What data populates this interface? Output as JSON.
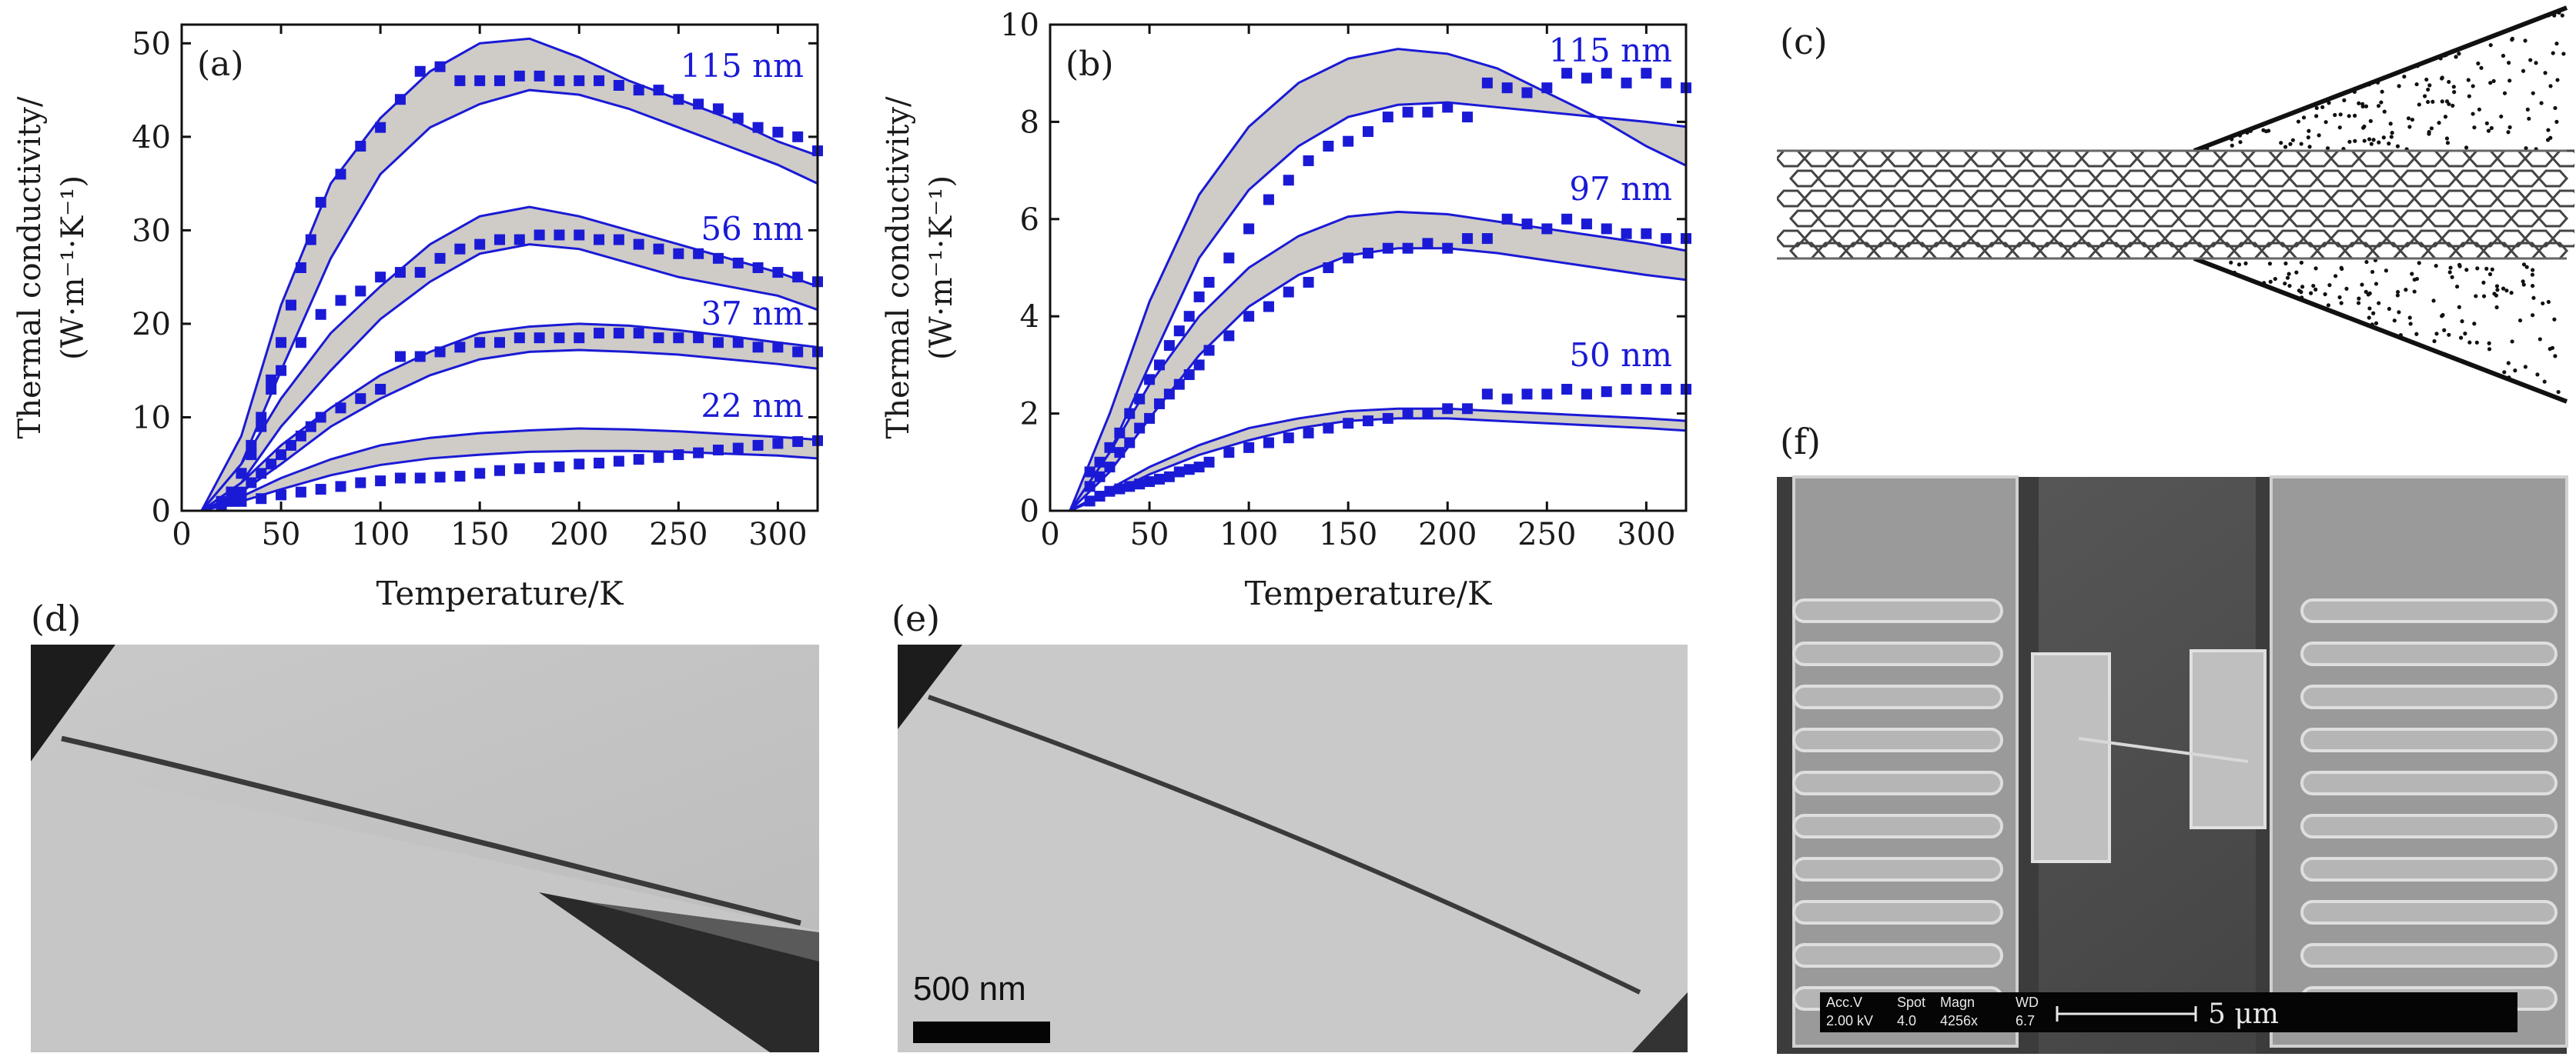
{
  "figure": {
    "panel_labels": {
      "a": "(a)",
      "b": "(b)",
      "c": "(c)",
      "d": "(d)",
      "e": "(e)",
      "f": "(f)"
    },
    "scale_bar_e": "500 nm",
    "sem_info": {
      "acc_v_label": "Acc.V",
      "acc_v_value": "2.00 kV",
      "spot_label": "Spot",
      "spot_value": "4.0",
      "magn_label": "Magn",
      "magn_value": "4256x",
      "wd_label": "WD",
      "wd_value": "6.7",
      "scale": "5 μm"
    }
  },
  "chart_data": [
    {
      "type": "line",
      "panel": "(a)",
      "xlabel": "Temperature/K",
      "ylabel_line1": "Thermal conductivity/",
      "ylabel_line2": "(W·m⁻¹·K⁻¹)",
      "xlim": [
        0,
        320
      ],
      "ylim": [
        0,
        52
      ],
      "xticks": [
        0,
        50,
        100,
        150,
        200,
        250,
        300
      ],
      "yticks": [
        0,
        10,
        20,
        30,
        40,
        50
      ],
      "series": [
        {
          "name": "115 nm",
          "band_x": [
            10,
            30,
            50,
            75,
            100,
            125,
            150,
            175,
            200,
            225,
            250,
            275,
            300,
            320
          ],
          "band_upper": [
            0,
            8,
            22,
            35,
            42,
            47,
            50,
            50.5,
            48.5,
            46,
            44,
            42,
            39.5,
            38
          ],
          "band_lower": [
            0,
            5,
            15,
            27,
            36,
            41,
            43.5,
            45,
            44.5,
            43,
            41,
            39,
            37,
            35
          ],
          "points_x": [
            20,
            25,
            30,
            35,
            40,
            45,
            50,
            55,
            60,
            65,
            70,
            80,
            90,
            100,
            110,
            120,
            130,
            140,
            150,
            160,
            170,
            180,
            190,
            200,
            210,
            220,
            230,
            240,
            250,
            260,
            270,
            280,
            290,
            300,
            310,
            320
          ],
          "points_y": [
            1,
            2,
            4,
            7,
            10,
            14,
            18,
            22,
            26,
            29,
            33,
            36,
            39,
            41,
            44,
            47,
            47.5,
            46,
            46,
            46,
            46.5,
            46.5,
            46,
            46,
            46,
            45.5,
            45,
            45,
            44,
            43.5,
            43,
            42,
            41,
            40.5,
            40,
            38.5
          ]
        },
        {
          "name": "56 nm",
          "band_x": [
            10,
            30,
            50,
            75,
            100,
            125,
            150,
            175,
            200,
            225,
            250,
            275,
            300,
            320
          ],
          "band_upper": [
            0,
            5,
            12,
            19,
            24,
            28.5,
            31.5,
            32.5,
            31.5,
            30,
            28.5,
            27,
            25.5,
            24
          ],
          "band_lower": [
            0,
            3,
            9,
            15,
            20.5,
            24.5,
            27.5,
            28.5,
            28,
            26.5,
            25,
            24,
            23,
            21.5
          ],
          "points_x": [
            20,
            25,
            30,
            35,
            40,
            45,
            50,
            60,
            70,
            80,
            90,
            100,
            110,
            120,
            130,
            140,
            150,
            160,
            170,
            180,
            190,
            200,
            210,
            220,
            230,
            240,
            250,
            260,
            270,
            280,
            290,
            300,
            310,
            320
          ],
          "points_y": [
            1,
            2,
            4,
            6,
            9,
            13,
            15,
            18,
            21,
            22.5,
            23.5,
            25,
            25.5,
            25.5,
            27,
            28,
            28.5,
            29,
            29,
            29.5,
            29.5,
            29.5,
            29,
            29,
            28.5,
            28,
            27.5,
            27.5,
            27,
            26.5,
            26,
            25.5,
            25,
            24.5
          ]
        },
        {
          "name": "37 nm",
          "band_x": [
            10,
            30,
            50,
            75,
            100,
            125,
            150,
            175,
            200,
            225,
            250,
            275,
            300,
            320
          ],
          "band_upper": [
            0,
            3,
            7,
            11,
            14.5,
            17,
            19,
            19.7,
            20,
            19.8,
            19.3,
            18.7,
            18,
            17.5
          ],
          "band_lower": [
            0,
            2,
            5,
            9,
            12,
            14.5,
            16.2,
            17,
            17.2,
            17,
            16.7,
            16.2,
            15.7,
            15.2
          ],
          "points_x": [
            25,
            30,
            35,
            40,
            45,
            50,
            55,
            60,
            65,
            70,
            80,
            90,
            100,
            110,
            120,
            130,
            140,
            150,
            160,
            170,
            180,
            190,
            200,
            210,
            220,
            230,
            240,
            250,
            260,
            270,
            280,
            290,
            300,
            310,
            320
          ],
          "points_y": [
            1,
            2,
            3,
            4,
            5,
            6,
            7,
            8,
            9,
            10,
            11,
            12,
            13,
            16.5,
            16.5,
            17,
            17.5,
            18,
            18,
            18.5,
            18.5,
            18.5,
            18.5,
            19,
            19,
            19,
            18.5,
            18.5,
            18.5,
            18,
            18,
            17.5,
            17.5,
            17,
            17
          ]
        },
        {
          "name": "22 nm",
          "band_x": [
            10,
            30,
            50,
            75,
            100,
            125,
            150,
            175,
            200,
            225,
            250,
            275,
            300,
            320
          ],
          "band_upper": [
            0,
            1.5,
            3.5,
            5.5,
            7,
            7.8,
            8.3,
            8.6,
            8.8,
            8.7,
            8.5,
            8.2,
            7.9,
            7.6
          ],
          "band_lower": [
            0,
            1,
            2.3,
            3.8,
            4.9,
            5.6,
            6,
            6.3,
            6.4,
            6.4,
            6.3,
            6.1,
            5.9,
            5.6
          ],
          "points_x": [
            20,
            30,
            40,
            50,
            60,
            70,
            80,
            90,
            100,
            110,
            120,
            130,
            140,
            150,
            160,
            170,
            180,
            190,
            200,
            210,
            220,
            230,
            240,
            250,
            260,
            270,
            280,
            290,
            300,
            310,
            320
          ],
          "points_y": [
            0.5,
            1,
            1.3,
            1.7,
            2,
            2.3,
            2.6,
            3,
            3.2,
            3.5,
            3.5,
            3.6,
            3.7,
            4,
            4.3,
            4.5,
            4.6,
            4.7,
            5,
            5.1,
            5.3,
            5.5,
            5.7,
            6,
            6.2,
            6.5,
            6.7,
            7,
            7.2,
            7.4,
            7.5
          ]
        }
      ]
    },
    {
      "type": "line",
      "panel": "(b)",
      "xlabel": "Temperature/K",
      "ylabel_line1": "Thermal conductivity/",
      "ylabel_line2": "(W·m⁻¹·K⁻¹)",
      "xlim": [
        0,
        320
      ],
      "ylim": [
        0,
        10
      ],
      "xticks": [
        0,
        50,
        100,
        150,
        200,
        250,
        300
      ],
      "yticks": [
        0,
        2,
        4,
        6,
        8,
        10
      ],
      "series": [
        {
          "name": "115 nm",
          "band_x": [
            10,
            30,
            50,
            75,
            100,
            125,
            150,
            175,
            200,
            225,
            250,
            275,
            300,
            320
          ],
          "band_upper": [
            0,
            2,
            4.3,
            6.5,
            7.9,
            8.8,
            9.3,
            9.5,
            9.4,
            9.1,
            8.6,
            8.1,
            7.5,
            7.1
          ],
          "band_lower": [
            0,
            1.2,
            3,
            5.2,
            6.6,
            7.5,
            8.1,
            8.35,
            8.4,
            8.3,
            8.2,
            8.1,
            8,
            7.9
          ],
          "points_x": [
            20,
            25,
            30,
            35,
            40,
            45,
            50,
            55,
            60,
            65,
            70,
            75,
            80,
            90,
            100,
            110,
            120,
            130,
            140,
            150,
            160,
            170,
            180,
            190,
            200,
            210,
            220,
            230,
            240,
            250,
            260,
            270,
            280,
            290,
            300,
            310,
            320
          ],
          "points_y": [
            0.8,
            1,
            1.3,
            1.6,
            2,
            2.3,
            2.7,
            3,
            3.4,
            3.7,
            4,
            4.4,
            4.7,
            5.2,
            5.8,
            6.4,
            6.8,
            7.2,
            7.5,
            7.6,
            7.8,
            8.1,
            8.2,
            8.2,
            8.3,
            8.1,
            8.8,
            8.7,
            8.6,
            8.7,
            9,
            8.9,
            9,
            8.8,
            9,
            8.8,
            8.7
          ]
        },
        {
          "name": "97 nm",
          "band_x": [
            10,
            30,
            50,
            75,
            100,
            125,
            150,
            175,
            200,
            225,
            250,
            275,
            300,
            320
          ],
          "band_upper": [
            0,
            1.2,
            2.6,
            4,
            5,
            5.65,
            6.05,
            6.15,
            6.1,
            5.95,
            5.8,
            5.65,
            5.5,
            5.35
          ],
          "band_lower": [
            0,
            0.8,
            1.9,
            3.2,
            4.2,
            4.85,
            5.25,
            5.4,
            5.4,
            5.3,
            5.15,
            5,
            4.85,
            4.75
          ],
          "points_x": [
            20,
            25,
            30,
            35,
            40,
            45,
            50,
            55,
            60,
            65,
            70,
            75,
            80,
            90,
            100,
            110,
            120,
            130,
            140,
            150,
            160,
            170,
            180,
            190,
            200,
            210,
            220,
            230,
            240,
            250,
            260,
            270,
            280,
            290,
            300,
            310,
            320
          ],
          "points_y": [
            0.5,
            0.7,
            0.9,
            1.2,
            1.4,
            1.7,
            1.9,
            2.2,
            2.4,
            2.6,
            2.8,
            3,
            3.3,
            3.6,
            4,
            4.2,
            4.5,
            4.7,
            5,
            5.2,
            5.3,
            5.4,
            5.4,
            5.5,
            5.4,
            5.6,
            5.6,
            6,
            5.9,
            5.8,
            6,
            5.9,
            5.8,
            5.7,
            5.7,
            5.6,
            5.6
          ]
        },
        {
          "name": "50 nm",
          "band_x": [
            10,
            30,
            50,
            75,
            100,
            125,
            150,
            175,
            200,
            225,
            250,
            275,
            300,
            320
          ],
          "band_upper": [
            0,
            0.45,
            0.9,
            1.35,
            1.7,
            1.9,
            2.05,
            2.1,
            2.1,
            2.05,
            2,
            1.95,
            1.9,
            1.85
          ],
          "band_lower": [
            0,
            0.35,
            0.75,
            1.15,
            1.45,
            1.7,
            1.85,
            1.9,
            1.9,
            1.85,
            1.8,
            1.75,
            1.7,
            1.65
          ],
          "points_x": [
            20,
            25,
            30,
            35,
            40,
            45,
            50,
            55,
            60,
            65,
            70,
            75,
            80,
            90,
            100,
            110,
            120,
            130,
            140,
            150,
            160,
            170,
            180,
            190,
            200,
            210,
            220,
            230,
            240,
            250,
            260,
            270,
            280,
            290,
            300,
            310,
            320
          ],
          "points_y": [
            0.2,
            0.3,
            0.4,
            0.45,
            0.5,
            0.55,
            0.6,
            0.65,
            0.7,
            0.8,
            0.85,
            0.9,
            1,
            1.2,
            1.3,
            1.4,
            1.5,
            1.6,
            1.7,
            1.8,
            1.85,
            1.9,
            2,
            2,
            2.1,
            2.1,
            2.4,
            2.3,
            2.4,
            2.4,
            2.5,
            2.4,
            2.45,
            2.5,
            2.5,
            2.5,
            2.5
          ]
        }
      ]
    }
  ]
}
